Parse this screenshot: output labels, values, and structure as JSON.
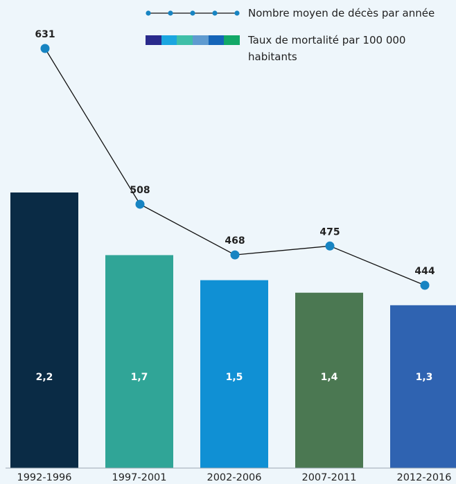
{
  "legend": {
    "line_label": "Nombre moyen de décès par année",
    "bar_label": "Taux de mortalité par 100 000 habitants",
    "bar_swatch_colors": [
      "#2a2a8c",
      "#1ba6e0",
      "#3fbfa8",
      "#5f9bd0",
      "#1565b8",
      "#12a867"
    ]
  },
  "colors": {
    "bars": [
      "#0a2b45",
      "#30a597",
      "#1090d4",
      "#4b7852",
      "#2f63b1"
    ],
    "line": "#111111",
    "marker": "#1784c2",
    "bar_label": "#ffffff"
  },
  "chart_data": {
    "type": "bar",
    "categories": [
      "1992-1996",
      "1997-2001",
      "2002-2006",
      "2007-2011",
      "2012-2016"
    ],
    "series": [
      {
        "name": "Taux de mortalité par 100 000 habitants",
        "type": "bar",
        "values": [
          2.2,
          1.7,
          1.5,
          1.4,
          1.3
        ],
        "value_labels": [
          "2,2",
          "1,7",
          "1,5",
          "1,4",
          "1,3"
        ]
      },
      {
        "name": "Nombre moyen de décès par année",
        "type": "line",
        "values": [
          631,
          508,
          468,
          475,
          444
        ],
        "value_labels": [
          "631",
          "508",
          "468",
          "475",
          "444"
        ]
      }
    ],
    "title": "",
    "xlabel": "",
    "ylabel": "",
    "grid": false,
    "legend_position": "top-right"
  }
}
